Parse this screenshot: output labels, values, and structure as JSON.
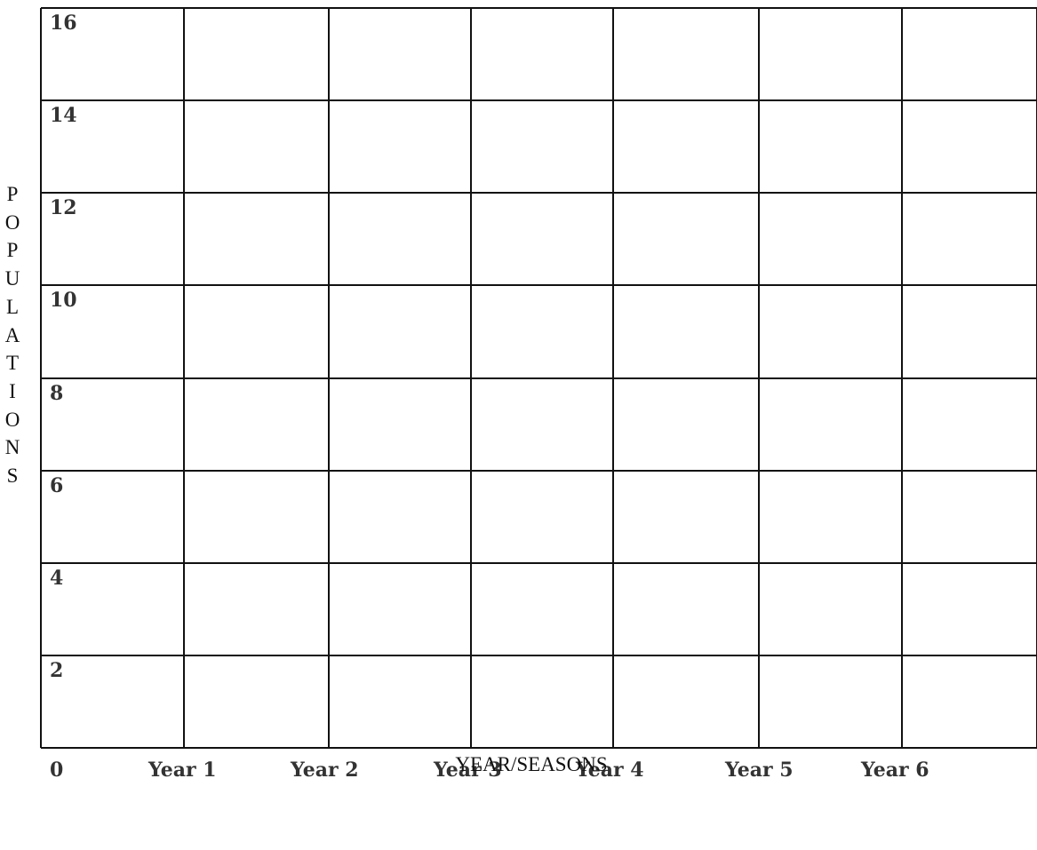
{
  "chart_data": {
    "type": "line",
    "title": "",
    "ylabel": "POPULATIONS",
    "xlabel": "YEAR/SEASONS",
    "x_tick_labels": [
      "0",
      "Year 1",
      "Year 2",
      "Year 3",
      "Year 4",
      "Year 5",
      "Year 6"
    ],
    "y_tick_labels": [
      "16",
      "14",
      "12",
      "10",
      "8",
      "6",
      "4",
      "2"
    ],
    "ylim": [
      0,
      16
    ],
    "y_step": 2,
    "x_columns": 7,
    "grid": true,
    "series": []
  }
}
